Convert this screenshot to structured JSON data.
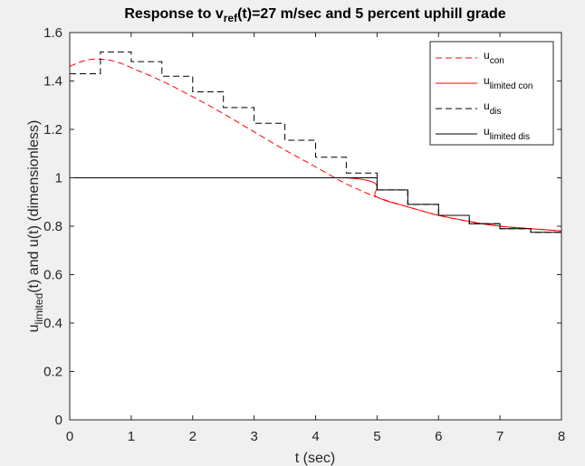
{
  "chart_data": {
    "type": "line",
    "title": {
      "prefix": "Response to v",
      "sub": "ref",
      "suffix": "(t)=27 m/sec and  5 percent uphill grade"
    },
    "xlabel": "t (sec)",
    "ylabel": {
      "prefix": "u",
      "sub": "limited",
      "suffix": "(t) and u(t) (dimensionless)"
    },
    "xlim": [
      0,
      8
    ],
    "ylim": [
      0,
      1.6
    ],
    "xticks": [
      0,
      1,
      2,
      3,
      4,
      5,
      6,
      7,
      8
    ],
    "yticks": [
      0,
      0.2,
      0.4,
      0.6,
      0.8,
      1,
      1.2,
      1.4,
      1.6
    ],
    "ytick_labels": [
      "0",
      "0.2",
      "0.4",
      "0.6",
      "0.8",
      "1",
      "1.2",
      "1.4",
      "1.6"
    ],
    "grid": false,
    "legend_location": "top-right",
    "series": [
      {
        "name": {
          "main": "u",
          "sub": "con"
        },
        "kind": "continuous",
        "color": "#ff0000",
        "style": "dashed",
        "x": [
          0,
          0.25,
          0.5,
          0.75,
          1,
          1.5,
          2,
          2.5,
          3,
          3.5,
          4,
          4.5,
          5,
          5.5,
          6,
          6.5,
          7,
          7.5,
          8
        ],
        "y": [
          1.46,
          1.485,
          1.49,
          1.48,
          1.455,
          1.4,
          1.335,
          1.265,
          1.19,
          1.115,
          1.045,
          0.975,
          0.92,
          0.88,
          0.845,
          0.82,
          0.8,
          0.79,
          0.78
        ]
      },
      {
        "name": {
          "main": "u",
          "sub": "limited con"
        },
        "kind": "continuous",
        "color": "#ff0000",
        "style": "solid",
        "x": [
          0,
          4.5,
          5,
          5.5,
          6,
          6.5,
          7,
          7.5,
          8
        ],
        "y": [
          1,
          1,
          0.92,
          0.88,
          0.845,
          0.82,
          0.8,
          0.79,
          0.78
        ]
      },
      {
        "name": {
          "main": "u",
          "sub": "dis"
        },
        "kind": "stairs",
        "color": "#000000",
        "style": "dashed",
        "x": [
          0,
          0.5,
          1,
          1.5,
          2,
          2.5,
          3,
          3.5,
          4,
          4.5,
          5,
          5.5,
          6,
          6.5,
          7,
          7.5
        ],
        "y": [
          1.43,
          1.52,
          1.48,
          1.42,
          1.355,
          1.29,
          1.225,
          1.155,
          1.085,
          1.02,
          0.95,
          0.89,
          0.845,
          0.81,
          0.79,
          0.775
        ],
        "x_end": 8
      },
      {
        "name": {
          "main": "u",
          "sub": "limited dis"
        },
        "kind": "stairs",
        "color": "#000000",
        "style": "solid",
        "x": [
          0,
          0.5,
          1,
          1.5,
          2,
          2.5,
          3,
          3.5,
          4,
          4.5,
          5,
          5.5,
          6,
          6.5,
          7,
          7.5
        ],
        "y": [
          1,
          1,
          1,
          1,
          1,
          1,
          1,
          1,
          1,
          1,
          0.95,
          0.89,
          0.845,
          0.81,
          0.79,
          0.775
        ],
        "x_end": 8
      }
    ]
  }
}
